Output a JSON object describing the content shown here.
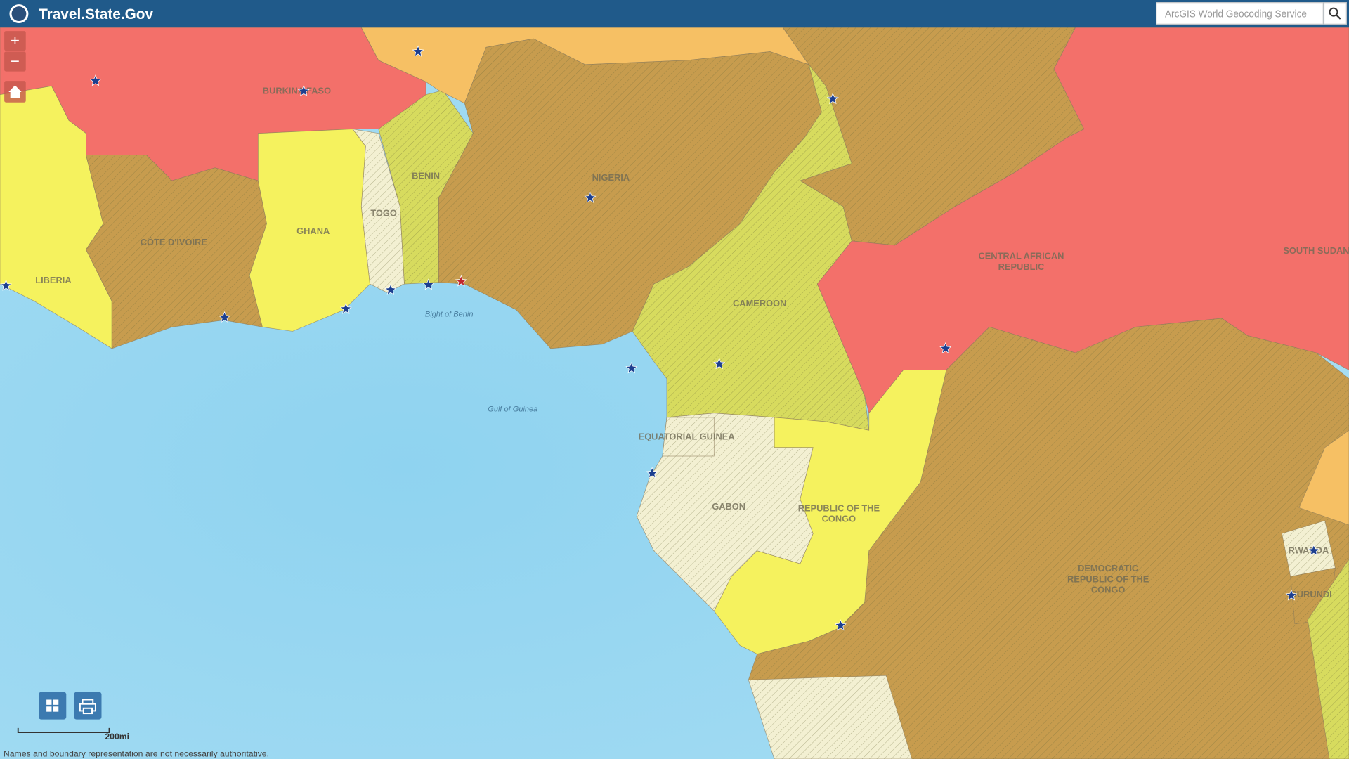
{
  "header": {
    "title": "Travel.State.Gov"
  },
  "search": {
    "placeholder": "ArcGIS World Geocoding Service"
  },
  "controls": {
    "zoom_in": "+",
    "zoom_out": "−"
  },
  "map": {
    "country_labels": [
      {
        "lines": [
          "BURKINA FASO"
        ]
      },
      {
        "lines": [
          "BENIN"
        ]
      },
      {
        "lines": [
          "NIGERIA"
        ]
      },
      {
        "lines": [
          "TOGO"
        ]
      },
      {
        "lines": [
          "GHANA"
        ]
      },
      {
        "lines": [
          "CÔTE D'IVOIRE"
        ]
      },
      {
        "lines": [
          "LIBERIA"
        ]
      },
      {
        "lines": [
          "CAMEROON"
        ]
      },
      {
        "lines": [
          "CENTRAL AFRICAN",
          "REPUBLIC"
        ]
      },
      {
        "lines": [
          "SOUTH SUDAN"
        ]
      },
      {
        "lines": [
          "EQUATORIAL GUINEA"
        ]
      },
      {
        "lines": [
          "GABON"
        ]
      },
      {
        "lines": [
          "REPUBLIC OF THE",
          "CONGO"
        ]
      },
      {
        "lines": [
          "DEMOCRATIC",
          "REPUBLIC OF THE",
          "CONGO"
        ]
      },
      {
        "lines": [
          "RWANDA"
        ]
      },
      {
        "lines": [
          "BURUNDI"
        ]
      }
    ],
    "water_labels": [
      "Bight of Benin",
      "Gulf of Guinea"
    ]
  },
  "scale": {
    "label": "200mi"
  },
  "footer": {
    "disclaimer": "Names and boundary representation are not necessarily authoritative."
  }
}
